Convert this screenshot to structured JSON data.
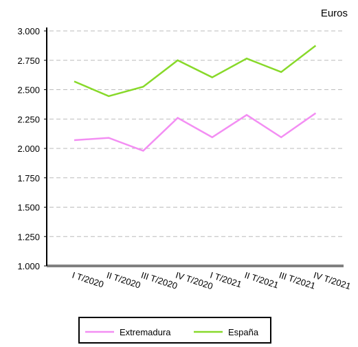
{
  "chart_data": {
    "type": "line",
    "ylabel": "Euros",
    "categories": [
      "I T/2020",
      "II T/2020",
      "III T/2020",
      "IV T/2020",
      "I T/2021",
      "II T/2021",
      "III T/2021",
      "IV T/2021"
    ],
    "series": [
      {
        "name": "Extremadura",
        "color": "#f38ef3",
        "values": [
          2070,
          2090,
          1980,
          2260,
          2095,
          2285,
          2095,
          2300
        ]
      },
      {
        "name": "España",
        "color": "#88d92a",
        "values": [
          2570,
          2445,
          2525,
          2750,
          2605,
          2765,
          2650,
          2875
        ]
      }
    ],
    "ylim": [
      1000,
      3000
    ],
    "yticks": [
      {
        "value": 1000,
        "label": "1.000"
      },
      {
        "value": 1250,
        "label": "1.250"
      },
      {
        "value": 1500,
        "label": "1.500"
      },
      {
        "value": 1750,
        "label": "1.750"
      },
      {
        "value": 2000,
        "label": "2.000"
      },
      {
        "value": 2250,
        "label": "2.250"
      },
      {
        "value": 2500,
        "label": "2.500"
      },
      {
        "value": 2750,
        "label": "2.750"
      },
      {
        "value": 3000,
        "label": "3.000"
      }
    ],
    "grid": true
  }
}
